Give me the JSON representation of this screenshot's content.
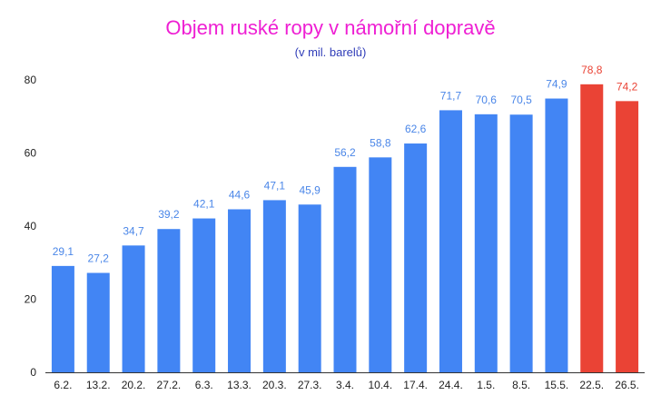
{
  "chart_data": {
    "type": "bar",
    "title": "Objem ruské ropy v námořní dopravě",
    "subtitle": "(v mil. barelů)",
    "xlabel": "",
    "ylabel": "",
    "categories": [
      "6.2.",
      "13.2.",
      "20.2.",
      "27.2.",
      "6.3.",
      "13.3.",
      "20.3.",
      "27.3.",
      "3.4.",
      "10.4.",
      "17.4.",
      "24.4.",
      "1.5.",
      "8.5.",
      "15.5.",
      "22.5.",
      "26.5."
    ],
    "values": [
      29.1,
      27.2,
      34.7,
      39.2,
      42.1,
      44.6,
      47.1,
      45.9,
      56.2,
      58.8,
      62.6,
      71.7,
      70.6,
      70.5,
      74.9,
      78.8,
      74.2
    ],
    "data_labels": [
      "29,1",
      "27,2",
      "34,7",
      "39,2",
      "42,1",
      "44,6",
      "47,1",
      "45,9",
      "56,2",
      "58,8",
      "62,6",
      "71,7",
      "70,6",
      "70,5",
      "74,9",
      "78,8",
      "74,2"
    ],
    "highlighted": [
      false,
      false,
      false,
      false,
      false,
      false,
      false,
      false,
      false,
      false,
      false,
      false,
      false,
      false,
      false,
      true,
      true
    ],
    "ylim": [
      0,
      80
    ],
    "yticks": [
      0,
      20,
      40,
      60,
      80
    ],
    "grid": false,
    "legend": "none"
  },
  "colors": {
    "title": "#ee1fd3",
    "subtitle": "#2f3cb8",
    "bar": "#4285f4",
    "bar_highlight": "#ea4335",
    "label": "#4a86e8",
    "label_highlight": "#ea4335",
    "axis": "#333333",
    "tick_text": "#222222"
  }
}
